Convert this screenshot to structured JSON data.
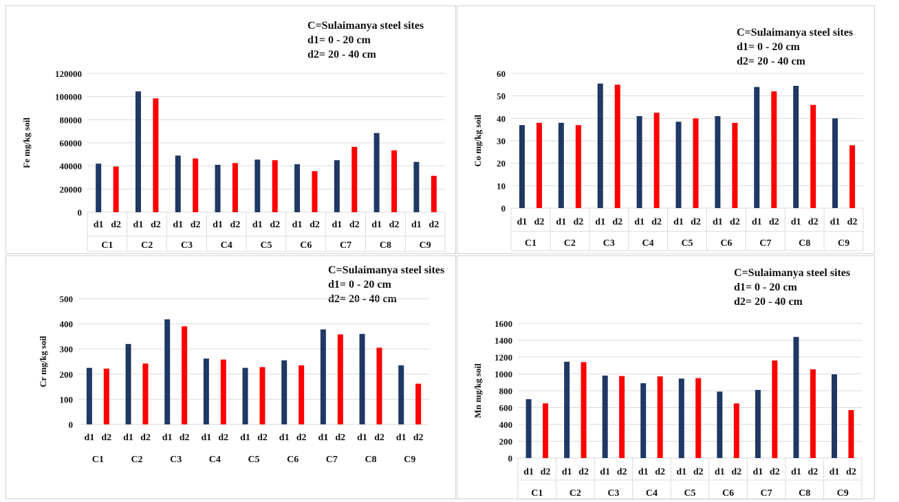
{
  "chart_data": [
    {
      "type": "bar",
      "legend": [
        "C=Sulaimanya steel sites",
        "d1= 0 - 20 cm",
        "d2= 20 - 40 cm"
      ],
      "ylabel": "Fe mg/kg soil",
      "ylim": [
        0,
        120000
      ],
      "yticks": [
        "0",
        "20000",
        "40000",
        "60000",
        "80000",
        "100000",
        "120000"
      ],
      "categories": [
        "C1",
        "C2",
        "C3",
        "C4",
        "C5",
        "C6",
        "C7",
        "C8",
        "C9"
      ],
      "sub_labels": [
        "d1",
        "d2"
      ],
      "series": [
        {
          "name": "d1",
          "color": "#1f3864",
          "values": [
            42000,
            104500,
            49000,
            41000,
            45500,
            41500,
            45000,
            68500,
            43500
          ]
        },
        {
          "name": "d2",
          "color": "#ff0000",
          "values": [
            39500,
            98500,
            46500,
            42500,
            45000,
            35500,
            56500,
            53500,
            31500
          ]
        }
      ],
      "grid": true,
      "table_lines": true
    },
    {
      "type": "bar",
      "legend": [
        "C=Sulaimanya steel sites",
        "d1= 0 - 20 cm",
        "d2= 20 - 40 cm"
      ],
      "ylabel": "Co mg/kg soil",
      "ylim": [
        0,
        60
      ],
      "yticks": [
        "0",
        "10",
        "20",
        "30",
        "40",
        "50",
        "60"
      ],
      "categories": [
        "C1",
        "C2",
        "C3",
        "C4",
        "C5",
        "C6",
        "C7",
        "C8",
        "C9"
      ],
      "sub_labels": [
        "d1",
        "d2"
      ],
      "series": [
        {
          "name": "d1",
          "color": "#1f3864",
          "values": [
            37,
            38,
            55.5,
            41,
            38.5,
            41,
            54,
            54.5,
            40
          ]
        },
        {
          "name": "d2",
          "color": "#ff0000",
          "values": [
            38,
            37,
            55,
            42.5,
            40,
            38,
            52,
            46,
            28
          ]
        }
      ],
      "grid": true,
      "table_lines": true
    },
    {
      "type": "bar",
      "legend": [
        "C=Sulaimanya steel sites",
        "d1= 0 - 20 cm",
        "d2= 20 - 40 cm"
      ],
      "ylabel": "Cr mg/kg soil",
      "ylim": [
        0,
        500
      ],
      "yticks": [
        "0",
        "100",
        "200",
        "300",
        "400",
        "500"
      ],
      "categories": [
        "C1",
        "C2",
        "C3",
        "C4",
        "C5",
        "C6",
        "C7",
        "C8",
        "C9"
      ],
      "sub_labels": [
        "d1",
        "d2"
      ],
      "series": [
        {
          "name": "d1",
          "color": "#1f3864",
          "values": [
            225,
            320,
            418,
            262,
            225,
            255,
            378,
            360,
            235
          ]
        },
        {
          "name": "d2",
          "color": "#ff0000",
          "values": [
            222,
            242,
            390,
            258,
            228,
            235,
            358,
            305,
            162
          ]
        }
      ],
      "grid": true,
      "table_lines": false
    },
    {
      "type": "bar",
      "legend": [
        "C=Sulaimanya steel sites",
        "d1= 0 - 20 cm",
        "d2= 20 - 40 cm"
      ],
      "ylabel": "Mn mg/kg soil",
      "ylim": [
        0,
        1600
      ],
      "yticks": [
        "0",
        "200",
        "400",
        "600",
        "800",
        "1000",
        "1200",
        "1400",
        "1600"
      ],
      "categories": [
        "C1",
        "C2",
        "C3",
        "C4",
        "C5",
        "C6",
        "C7",
        "C8",
        "C9"
      ],
      "sub_labels": [
        "d1",
        "d2"
      ],
      "series": [
        {
          "name": "d1",
          "color": "#1f3864",
          "values": [
            700,
            1145,
            980,
            890,
            945,
            790,
            810,
            1440,
            995
          ]
        },
        {
          "name": "d2",
          "color": "#ff0000",
          "values": [
            650,
            1140,
            975,
            970,
            950,
            650,
            1160,
            1055,
            570
          ]
        }
      ],
      "grid": true,
      "table_lines": true
    }
  ]
}
